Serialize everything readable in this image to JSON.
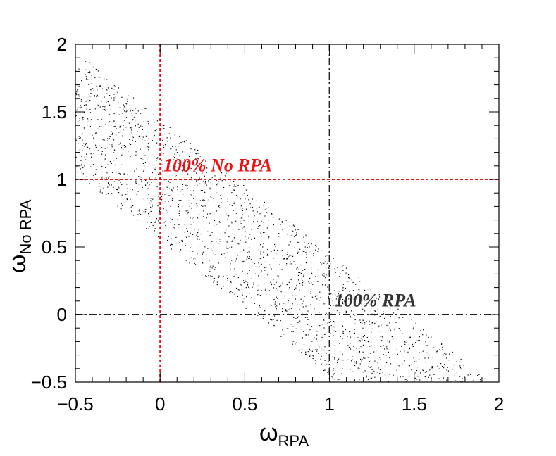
{
  "chart_data": {
    "type": "scatter",
    "title": "",
    "xlabel": {
      "symbol": "ω",
      "subscript": "RPA"
    },
    "ylabel": {
      "symbol": "ω",
      "subscript": "No RPA"
    },
    "xlim": [
      -0.5,
      2
    ],
    "ylim": [
      -0.5,
      2
    ],
    "x_ticks": [
      -0.5,
      0,
      0.5,
      1,
      1.5,
      2
    ],
    "y_ticks": [
      -0.5,
      0,
      0.5,
      1,
      1.5,
      2
    ],
    "x_tick_labels": [
      "−0.5",
      "0",
      "0.5",
      "1",
      "1.5",
      "2"
    ],
    "y_tick_labels": [
      "−0.5",
      "0",
      "0.5",
      "1",
      "1.5",
      "2"
    ],
    "grid": false,
    "reference_lines": [
      {
        "orientation": "vertical",
        "value": 0,
        "color": "#ee1111",
        "style": "dotted"
      },
      {
        "orientation": "horizontal",
        "value": 1,
        "color": "#ee1111",
        "style": "dotted"
      },
      {
        "orientation": "vertical",
        "value": 1,
        "color": "#222222",
        "style": "dash-dot"
      },
      {
        "orientation": "horizontal",
        "value": 0,
        "color": "#222222",
        "style": "dash-dot"
      }
    ],
    "annotations": [
      {
        "text": "100% No RPA",
        "x": 0.02,
        "y": 1.06,
        "color": "#ee1111"
      },
      {
        "text": "100% RPA",
        "x": 1.03,
        "y": 0.06,
        "color": "#333333"
      }
    ],
    "scatter_band": {
      "description_relation": "points scattered in a diagonal band",
      "x_range": [
        -0.5,
        2
      ],
      "band_center_intercept": 1.0,
      "band_center_slope": -1.0,
      "band_half_width": 0.45,
      "n_points": 2000,
      "point_color": "#000000"
    }
  }
}
